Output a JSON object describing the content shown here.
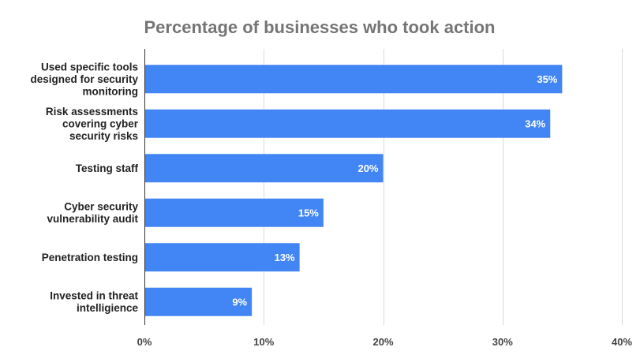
{
  "chart_data": {
    "type": "bar",
    "orientation": "horizontal",
    "title": "Percentage of businesses who took action",
    "xlabel": "",
    "ylabel": "",
    "categories": [
      [
        "Used specific tools",
        "designed for security",
        "monitoring"
      ],
      [
        "Risk assessments",
        "covering cyber",
        "security risks"
      ],
      [
        "Testing staff"
      ],
      [
        "Cyber security",
        "vulnerability audit"
      ],
      [
        "Penetration testing"
      ],
      [
        "Invested in threat",
        "intelligience"
      ]
    ],
    "values": [
      35,
      34,
      20,
      15,
      13,
      9
    ],
    "data_labels": [
      "35%",
      "34%",
      "20%",
      "15%",
      "13%",
      "9%"
    ],
    "xlim": [
      0,
      40
    ],
    "x_ticks": [
      0,
      10,
      20,
      30,
      40
    ],
    "x_tick_labels": [
      "0%",
      "10%",
      "20%",
      "30%",
      "40%"
    ],
    "grid": true,
    "legend": "none",
    "bar_color": "#4285f4"
  }
}
